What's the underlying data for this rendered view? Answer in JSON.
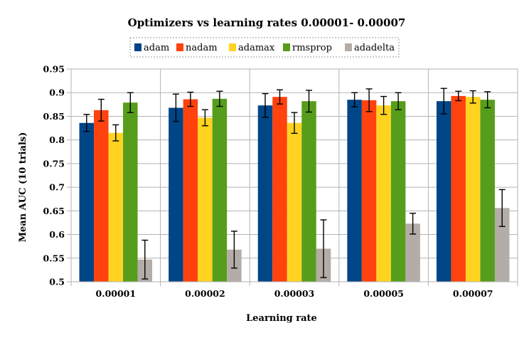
{
  "chart_data": {
    "type": "bar",
    "title": "Optimizers vs learning rates 0.00001- 0.00007",
    "xlabel": "Learning rate",
    "ylabel": "Mean AUC (10 trials)",
    "categories": [
      "0.00001",
      "0.00002",
      "0.00003",
      "0.00005",
      "0.00007"
    ],
    "ylim": [
      0.5,
      0.95
    ],
    "yticks": [
      "0.5",
      "0.55",
      "0.6",
      "0.65",
      "0.7",
      "0.75",
      "0.8",
      "0.85",
      "0.9",
      "0.95"
    ],
    "grid": true,
    "legend_position": "top",
    "series": [
      {
        "name": "adam",
        "color": "#004586",
        "values": [
          0.836,
          0.868,
          0.873,
          0.885,
          0.882
        ],
        "errors": [
          0.018,
          0.029,
          0.025,
          0.015,
          0.027
        ]
      },
      {
        "name": "nadam",
        "color": "#ff420e",
        "values": [
          0.863,
          0.886,
          0.891,
          0.884,
          0.893
        ],
        "errors": [
          0.023,
          0.015,
          0.015,
          0.024,
          0.01
        ]
      },
      {
        "name": "adamax",
        "color": "#ffd320",
        "values": [
          0.815,
          0.847,
          0.836,
          0.873,
          0.891
        ],
        "errors": [
          0.017,
          0.017,
          0.022,
          0.019,
          0.013
        ]
      },
      {
        "name": "rmsprop",
        "color": "#579d1c",
        "values": [
          0.879,
          0.887,
          0.882,
          0.882,
          0.885
        ],
        "errors": [
          0.021,
          0.016,
          0.023,
          0.018,
          0.017
        ]
      },
      {
        "name": "adadelta",
        "color": "#b3aca7",
        "values": [
          0.547,
          0.568,
          0.57,
          0.623,
          0.656
        ],
        "errors": [
          0.041,
          0.039,
          0.061,
          0.022,
          0.039
        ]
      }
    ]
  }
}
